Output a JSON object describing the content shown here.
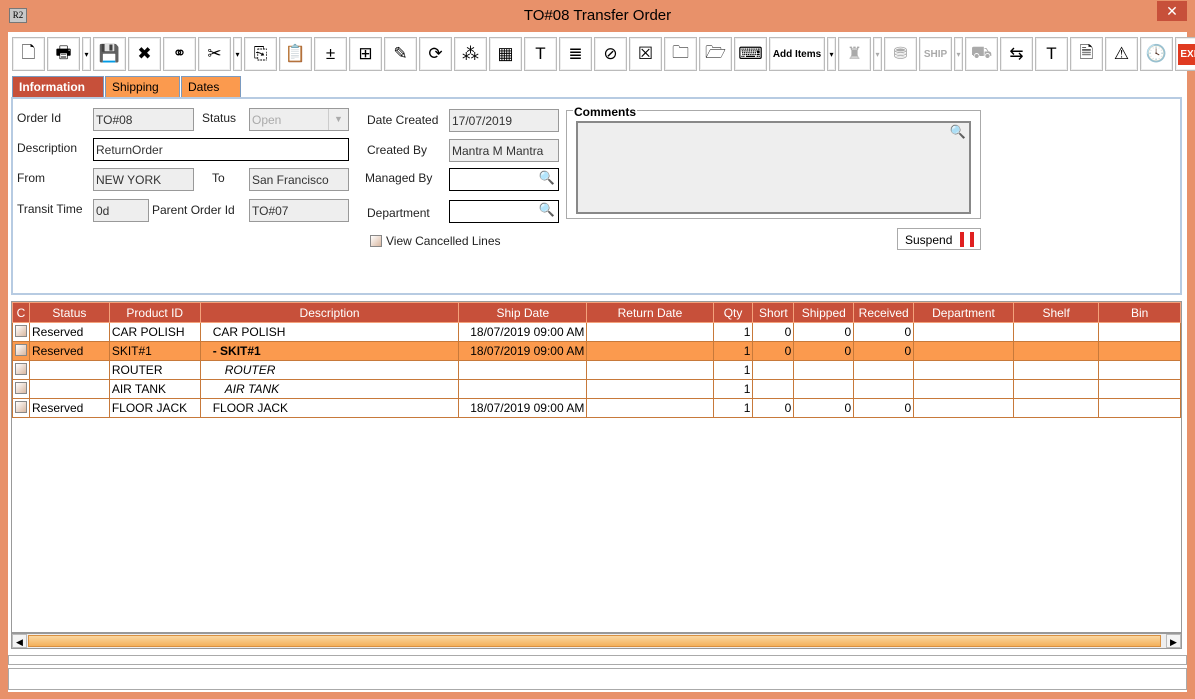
{
  "window": {
    "title": "TO#08 Transfer Order",
    "logo": "R2",
    "close": "✕"
  },
  "toolbar": [
    {
      "name": "new-icon",
      "g": "🗋"
    },
    {
      "name": "print-icon",
      "g": "🖶"
    },
    {
      "name": "dropdown",
      "g": "▾"
    },
    {
      "name": "save-icon",
      "g": "💾"
    },
    {
      "name": "delete-icon",
      "g": "✖"
    },
    {
      "name": "find-icon",
      "g": "⚭"
    },
    {
      "name": "cut-icon",
      "g": "✂"
    },
    {
      "name": "dropdown",
      "g": "▾"
    },
    {
      "name": "copy-icon",
      "g": "⎘"
    },
    {
      "name": "paste-icon",
      "g": "📋"
    },
    {
      "name": "add-line-icon",
      "g": "±"
    },
    {
      "name": "add-sub-line-icon",
      "g": "⊞"
    },
    {
      "name": "edit-icon",
      "g": "✎"
    },
    {
      "name": "refresh-icon",
      "g": "⟳"
    },
    {
      "name": "query-icon",
      "g": "⁂"
    },
    {
      "name": "asset-icon",
      "g": "▦"
    },
    {
      "name": "label-icon",
      "g": "T"
    },
    {
      "name": "misc-icon",
      "g": "≣"
    },
    {
      "name": "cancel-icon",
      "g": "⊘"
    },
    {
      "name": "delete-document-icon",
      "g": "☒"
    },
    {
      "name": "file-icon",
      "g": "🗀"
    },
    {
      "name": "folder-clock-icon",
      "g": "🗁"
    },
    {
      "name": "key-icon",
      "g": "⌨"
    },
    {
      "name": "add-items-button",
      "g": "Add Items"
    },
    {
      "name": "dropdown",
      "g": "▾"
    },
    {
      "name": "receive-icon",
      "g": "♜"
    },
    {
      "name": "dropdown",
      "g": "▾"
    },
    {
      "name": "pick-icon",
      "g": "⛃"
    },
    {
      "name": "ship-icon",
      "g": "SHIP"
    },
    {
      "name": "dropdown",
      "g": "▾"
    },
    {
      "name": "truck-icon",
      "g": "⛟"
    },
    {
      "name": "transfer-icon",
      "g": "⇆"
    },
    {
      "name": "report-icon",
      "g": "T"
    },
    {
      "name": "document-icon",
      "g": "🗎"
    },
    {
      "name": "warning-document-icon",
      "g": "⚠"
    },
    {
      "name": "notes-clock-icon",
      "g": "🕓"
    },
    {
      "name": "exit-icon",
      "g": "EXIT"
    }
  ],
  "tabs": [
    "Information",
    "Shipping",
    "Dates"
  ],
  "form": {
    "order_id_label": "Order Id",
    "order_id": "TO#08",
    "status_label": "Status",
    "status": "Open",
    "description_label": "Description",
    "description": "ReturnOrder",
    "from_label": "From",
    "from": "NEW YORK",
    "to_label": "To",
    "to": "San Francisco",
    "transit_label": "Transit Time",
    "transit": "0d",
    "parent_label": "Parent Order Id",
    "parent": "TO#07",
    "date_created_label": "Date Created",
    "date_created": "17/07/2019",
    "created_by_label": "Created By",
    "created_by": "Mantra M Mantra",
    "managed_by_label": "Managed By",
    "managed_by": "",
    "department_label": "Department",
    "department": "",
    "view_cancelled": "View Cancelled Lines",
    "comments_label": "Comments",
    "comments": "",
    "suspend": "Suspend"
  },
  "grid": {
    "columns": [
      "C",
      "Status",
      "Product ID",
      "Description",
      "Ship Date",
      "Return Date",
      "Qty",
      "Short",
      "Shipped",
      "Received",
      "Department",
      "Shelf",
      "Bin"
    ],
    "rows": [
      {
        "status": "Reserved",
        "product": "CAR POLISH",
        "desc": "CAR POLISH",
        "ship": "18/07/2019 09:00 AM",
        "ret": "",
        "qty": "1",
        "short": "0",
        "shipped": "0",
        "received": "0",
        "style": ""
      },
      {
        "status": "Reserved",
        "product": "SKIT#1",
        "desc": "-  SKIT#1",
        "ship": "18/07/2019 09:00 AM",
        "ret": "",
        "qty": "1",
        "short": "0",
        "shipped": "0",
        "received": "0",
        "style": "kit"
      },
      {
        "status": "",
        "product": "ROUTER",
        "desc": "ROUTER",
        "ship": "",
        "ret": "",
        "qty": "1",
        "short": "",
        "shipped": "",
        "received": "",
        "style": "child"
      },
      {
        "status": "",
        "product": "AIR TANK",
        "desc": "AIR TANK",
        "ship": "",
        "ret": "",
        "qty": "1",
        "short": "",
        "shipped": "",
        "received": "",
        "style": "child"
      },
      {
        "status": "Reserved",
        "product": "FLOOR JACK",
        "desc": "FLOOR JACK",
        "ship": "18/07/2019 09:00 AM",
        "ret": "",
        "qty": "1",
        "short": "0",
        "shipped": "0",
        "received": "0",
        "style": ""
      }
    ]
  },
  "colors": {
    "accent": "#C7503A",
    "selected_row": "#FB9A4E",
    "frame": "#E8916A"
  }
}
